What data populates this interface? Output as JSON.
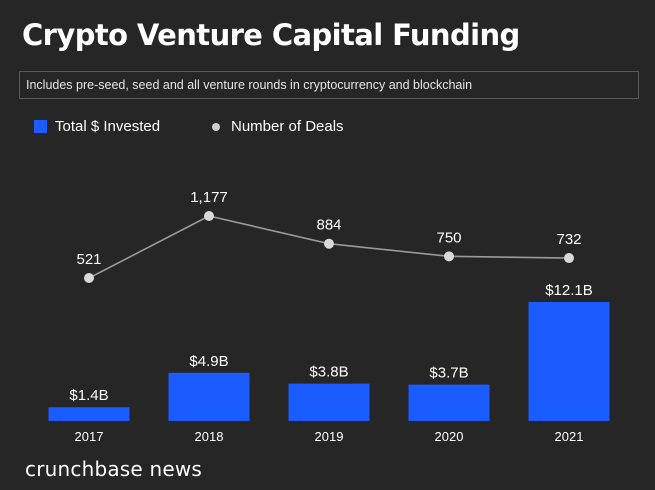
{
  "header": {
    "title": "Crypto Venture Capital Funding",
    "subtitle": "Includes pre-seed, seed and all venture rounds in cryptocurrency and blockchain"
  },
  "legend": {
    "bars_label": "Total $ Invested",
    "line_label": "Number of Deals"
  },
  "footer": {
    "brand": "crunchbase news"
  },
  "colors": {
    "background": "#262626",
    "bar": "#1a5cff",
    "line": "#9a9a9a",
    "point": "#d9d9d9",
    "text": "#ffffff"
  },
  "chart_data": {
    "type": "bar",
    "title": "Crypto Venture Capital Funding",
    "subtitle": "Includes pre-seed, seed and all venture rounds in cryptocurrency and blockchain",
    "categories": [
      "2017",
      "2018",
      "2019",
      "2020",
      "2021"
    ],
    "grid": false,
    "legend_position": "top-left",
    "series": [
      {
        "name": "Total $ Invested",
        "type": "bar",
        "unit": "$B",
        "values": [
          1.4,
          4.9,
          3.8,
          3.7,
          12.1
        ],
        "labels": [
          "$1.4B",
          "$4.9B",
          "$3.8B",
          "$3.7B",
          "$12.1B"
        ],
        "ylim": [
          0,
          12.1
        ]
      },
      {
        "name": "Number of Deals",
        "type": "line",
        "values": [
          521,
          1177,
          884,
          750,
          732
        ],
        "labels": [
          "521",
          "1,177",
          "884",
          "750",
          "732"
        ],
        "ylim": [
          0,
          1177
        ]
      }
    ]
  }
}
